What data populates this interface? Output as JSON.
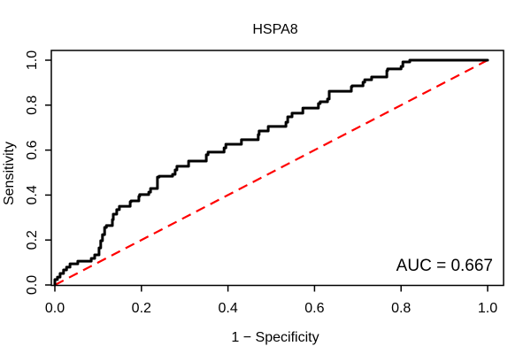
{
  "chart_data": {
    "type": "line",
    "title": "HSPA8",
    "xlabel": "1 − Specificity",
    "ylabel": "Sensitivity",
    "annotation": "AUC = 0.667",
    "auc": 0.667,
    "xlim": [
      0,
      1
    ],
    "ylim": [
      0,
      1
    ],
    "x_tick_values": [
      0.0,
      0.2,
      0.4,
      0.6,
      0.8,
      1.0
    ],
    "x_tick_labels": [
      "0.0",
      "0.2",
      "0.4",
      "0.6",
      "0.8",
      "1.0"
    ],
    "y_tick_values": [
      0.0,
      0.2,
      0.4,
      0.6,
      0.8,
      1.0
    ],
    "y_tick_labels": [
      "0.0",
      "0.2",
      "0.4",
      "0.6",
      "0.8",
      "1.0"
    ],
    "grid": false,
    "colors": {
      "roc_curve": "#000000",
      "chance_line": "#ff0000",
      "frame": "#000000"
    },
    "series": [
      {
        "name": "ROC curve",
        "style": "step",
        "color": "#000000",
        "points": [
          [
            0.0,
            0.0
          ],
          [
            0.006,
            0.024
          ],
          [
            0.012,
            0.035
          ],
          [
            0.02,
            0.051
          ],
          [
            0.027,
            0.067
          ],
          [
            0.035,
            0.079
          ],
          [
            0.043,
            0.094
          ],
          [
            0.053,
            0.094
          ],
          [
            0.057,
            0.106
          ],
          [
            0.084,
            0.106
          ],
          [
            0.092,
            0.118
          ],
          [
            0.102,
            0.134
          ],
          [
            0.106,
            0.165
          ],
          [
            0.11,
            0.197
          ],
          [
            0.115,
            0.224
          ],
          [
            0.119,
            0.256
          ],
          [
            0.133,
            0.264
          ],
          [
            0.135,
            0.291
          ],
          [
            0.143,
            0.315
          ],
          [
            0.149,
            0.335
          ],
          [
            0.155,
            0.35
          ],
          [
            0.174,
            0.35
          ],
          [
            0.176,
            0.37
          ],
          [
            0.194,
            0.374
          ],
          [
            0.196,
            0.394
          ],
          [
            0.217,
            0.402
          ],
          [
            0.221,
            0.413
          ],
          [
            0.227,
            0.429
          ],
          [
            0.237,
            0.429
          ],
          [
            0.241,
            0.48
          ],
          [
            0.272,
            0.484
          ],
          [
            0.278,
            0.492
          ],
          [
            0.282,
            0.512
          ],
          [
            0.309,
            0.528
          ],
          [
            0.313,
            0.551
          ],
          [
            0.35,
            0.551
          ],
          [
            0.354,
            0.579
          ],
          [
            0.391,
            0.591
          ],
          [
            0.395,
            0.61
          ],
          [
            0.405,
            0.626
          ],
          [
            0.431,
            0.626
          ],
          [
            0.436,
            0.646
          ],
          [
            0.47,
            0.646
          ],
          [
            0.472,
            0.669
          ],
          [
            0.481,
            0.685
          ],
          [
            0.493,
            0.685
          ],
          [
            0.501,
            0.705
          ],
          [
            0.534,
            0.705
          ],
          [
            0.538,
            0.724
          ],
          [
            0.548,
            0.748
          ],
          [
            0.573,
            0.764
          ],
          [
            0.575,
            0.787
          ],
          [
            0.609,
            0.787
          ],
          [
            0.613,
            0.807
          ],
          [
            0.63,
            0.815
          ],
          [
            0.634,
            0.827
          ],
          [
            0.64,
            0.862
          ],
          [
            0.685,
            0.862
          ],
          [
            0.687,
            0.882
          ],
          [
            0.712,
            0.886
          ],
          [
            0.716,
            0.902
          ],
          [
            0.732,
            0.913
          ],
          [
            0.736,
            0.925
          ],
          [
            0.767,
            0.925
          ],
          [
            0.769,
            0.953
          ],
          [
            0.8,
            0.961
          ],
          [
            0.804,
            0.972
          ],
          [
            0.82,
            0.992
          ],
          [
            0.845,
            1.0
          ],
          [
            1.0,
            1.0
          ]
        ]
      },
      {
        "name": "Chance diagonal",
        "style": "dashed",
        "color": "#ff0000",
        "points": [
          [
            0.0,
            0.0
          ],
          [
            1.0,
            1.0
          ]
        ]
      }
    ]
  }
}
